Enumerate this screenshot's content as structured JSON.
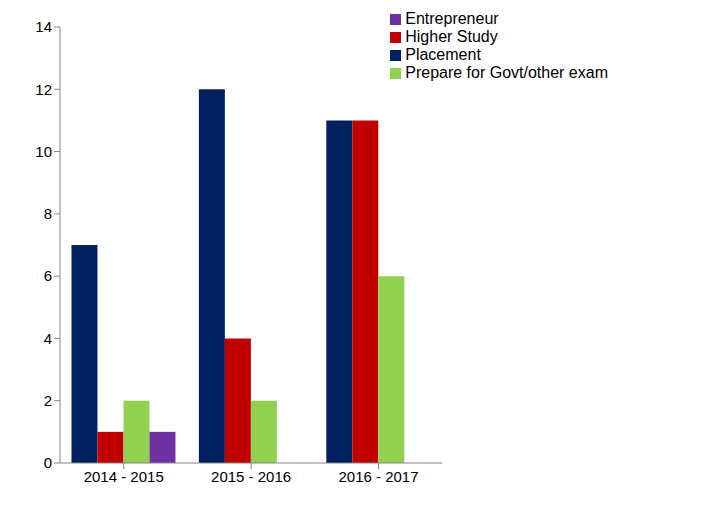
{
  "chart_data": {
    "type": "bar",
    "categories": [
      "2014 - 2015",
      "2015 - 2016",
      "2016 - 2017"
    ],
    "series": [
      {
        "name": "Placement",
        "color": "#002060",
        "values": [
          7,
          12,
          11
        ]
      },
      {
        "name": "Higher Study",
        "color": "#C00000",
        "values": [
          1,
          4,
          11
        ]
      },
      {
        "name": "Prepare for Govt/other exam",
        "color": "#92D050",
        "values": [
          2,
          2,
          6
        ]
      },
      {
        "name": "Entrepreneur",
        "color": "#7030A0",
        "values": [
          1,
          null,
          null
        ]
      }
    ],
    "ylim": [
      0,
      14
    ],
    "yticks": [
      0,
      2,
      4,
      6,
      8,
      10,
      12,
      14
    ],
    "grid": false,
    "legend": "upper right"
  }
}
